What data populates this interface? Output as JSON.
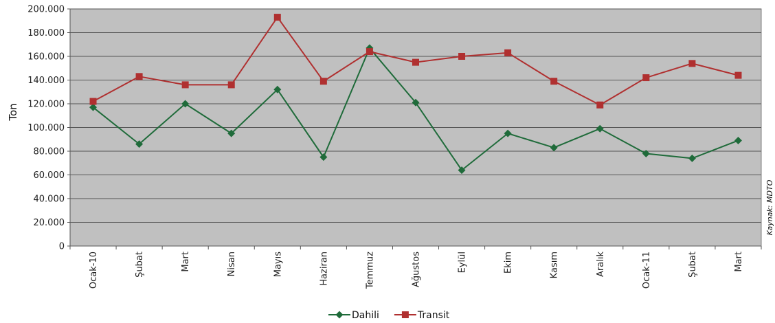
{
  "chart_data": {
    "type": "line",
    "categories": [
      "Ocak-10",
      "Şubat",
      "Mart",
      "Nisan",
      "Mayıs",
      "Haziran",
      "Temmuz",
      "Ağustos",
      "Eylül",
      "Ekim",
      "Kasım",
      "Aralık",
      "Ocak-11",
      "Şubat",
      "Mart"
    ],
    "series": [
      {
        "name": "Dahili",
        "color": "#1f6b3a",
        "marker": "diamond",
        "values": [
          117000,
          86000,
          120000,
          95000,
          132000,
          75000,
          167000,
          121000,
          64000,
          95000,
          83000,
          99000,
          78000,
          74000,
          89000
        ]
      },
      {
        "name": "Transit",
        "color": "#b03030",
        "marker": "square",
        "values": [
          122000,
          143000,
          136000,
          136000,
          193000,
          139000,
          164000,
          155000,
          160000,
          163000,
          139000,
          119000,
          142000,
          154000,
          144000
        ]
      }
    ],
    "ylabel": "Ton",
    "xlabel": "",
    "ylim": [
      0,
      200000
    ],
    "yticks": [
      0,
      20000,
      40000,
      60000,
      80000,
      100000,
      120000,
      140000,
      160000,
      180000,
      200000
    ],
    "ytick_labels": [
      "0",
      "20.000",
      "40.000",
      "60.000",
      "80.000",
      "100.000",
      "120.000",
      "140.000",
      "160.000",
      "180.000",
      "200.000"
    ],
    "grid": true,
    "plot_background": "#c0c0c0",
    "legend_position": "bottom-center",
    "source_note": "Kaynak: MDTO"
  }
}
